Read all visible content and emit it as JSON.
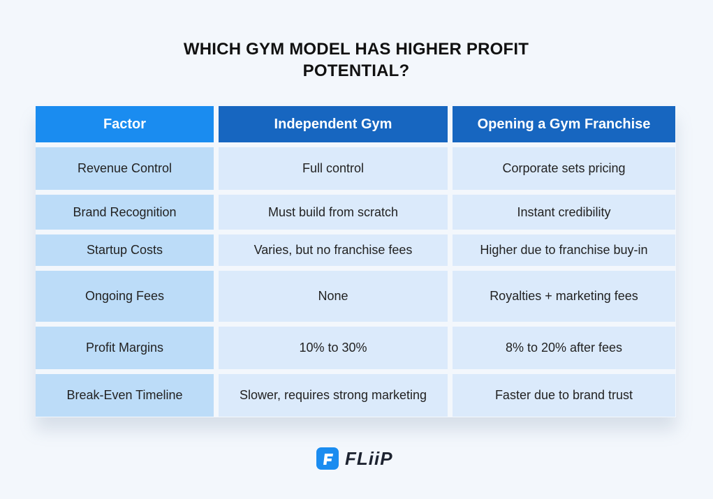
{
  "header": {
    "title": "WHICH GYM MODEL HAS HIGHER PROFIT POTENTIAL?"
  },
  "table": {
    "columns": [
      "Factor",
      "Independent Gym",
      "Opening a Gym Franchise"
    ],
    "rows": [
      [
        "Revenue Control",
        "Full control",
        "Corporate sets pricing"
      ],
      [
        "Brand Recognition",
        "Must build from scratch",
        "Instant credibility"
      ],
      [
        "Startup Costs",
        "Varies, but no franchise fees",
        "Higher due to franchise buy-in"
      ],
      [
        "Ongoing Fees",
        "None",
        "Royalties + marketing fees"
      ],
      [
        "Profit Margins",
        "10% to 30%",
        "8% to 20% after fees"
      ],
      [
        "Break-Even Timeline",
        "Slower, requires strong marketing",
        "Faster due to brand trust"
      ]
    ]
  },
  "footer": {
    "logo": "FLiiP"
  }
}
